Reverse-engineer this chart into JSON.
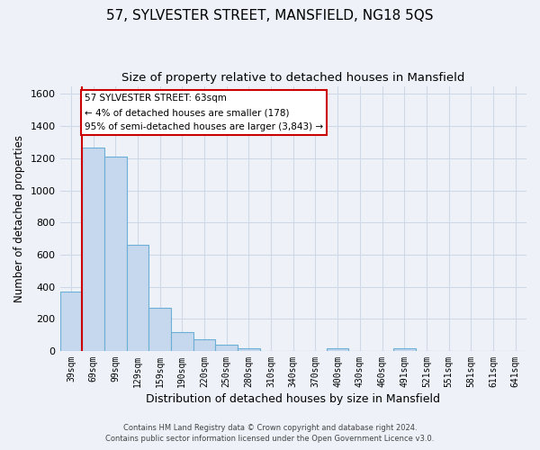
{
  "title_line1": "57, SYLVESTER STREET, MANSFIELD, NG18 5QS",
  "title_line2": "Size of property relative to detached houses in Mansfield",
  "xlabel": "Distribution of detached houses by size in Mansfield",
  "ylabel": "Number of detached properties",
  "bar_labels": [
    "39sqm",
    "69sqm",
    "99sqm",
    "129sqm",
    "159sqm",
    "190sqm",
    "220sqm",
    "250sqm",
    "280sqm",
    "310sqm",
    "340sqm",
    "370sqm",
    "400sqm",
    "430sqm",
    "460sqm",
    "491sqm",
    "521sqm",
    "551sqm",
    "581sqm",
    "611sqm",
    "641sqm"
  ],
  "bar_heights": [
    370,
    1265,
    1210,
    660,
    270,
    115,
    75,
    38,
    18,
    0,
    0,
    0,
    15,
    0,
    0,
    15,
    0,
    0,
    0,
    0,
    0
  ],
  "bar_color": "#c5d8ed",
  "bar_edge_color": "#6baed6",
  "ylim": [
    0,
    1650
  ],
  "yticks": [
    0,
    200,
    400,
    600,
    800,
    1000,
    1200,
    1400,
    1600
  ],
  "annotation_box_text": [
    "57 SYLVESTER STREET: 63sqm",
    "← 4% of detached houses are smaller (178)",
    "95% of semi-detached houses are larger (3,843) →"
  ],
  "annotation_box_color": "#ffffff",
  "annotation_box_edge_color": "#cc0000",
  "marker_line_color": "#cc0000",
  "grid_color": "#d0d8e8",
  "background_color": "#eef2f8",
  "plot_bg_color": "#eef2f8",
  "footnote_line1": "Contains HM Land Registry data © Crown copyright and database right 2024.",
  "footnote_line2": "Contains public sector information licensed under the Open Government Licence v3.0."
}
